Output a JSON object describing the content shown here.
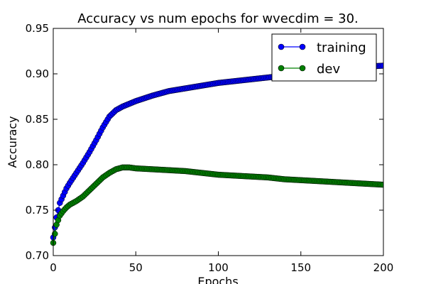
{
  "chart_data": {
    "type": "line",
    "title": "Accuracy vs num epochs for wvecdim = 30.",
    "xlabel": "Epochs",
    "ylabel": "Accuracy",
    "xlim": [
      0,
      200
    ],
    "ylim": [
      0.7,
      0.95
    ],
    "x_ticks": [
      0,
      50,
      100,
      150,
      200
    ],
    "y_ticks": [
      0.7,
      0.75,
      0.8,
      0.85,
      0.9,
      0.95
    ],
    "x_tick_labels": [
      "0",
      "50",
      "100",
      "150",
      "200"
    ],
    "y_tick_labels": [
      "0.70",
      "0.75",
      "0.80",
      "0.85",
      "0.90",
      "0.95"
    ],
    "grid": false,
    "legend_position": "top-right",
    "x": [
      0,
      2,
      4,
      6,
      8,
      10,
      14,
      18,
      22,
      26,
      30,
      34,
      38,
      42,
      46,
      50,
      60,
      70,
      80,
      90,
      100,
      110,
      120,
      130,
      140,
      150,
      160,
      170,
      180,
      190,
      200
    ],
    "series": [
      {
        "name": "training",
        "color": "#0000ff",
        "values": [
          0.72,
          0.742,
          0.758,
          0.766,
          0.774,
          0.78,
          0.791,
          0.802,
          0.814,
          0.827,
          0.841,
          0.853,
          0.86,
          0.864,
          0.867,
          0.87,
          0.876,
          0.881,
          0.884,
          0.887,
          0.89,
          0.892,
          0.894,
          0.896,
          0.898,
          0.9,
          0.902,
          0.904,
          0.906,
          0.908,
          0.909
        ]
      },
      {
        "name": "dev",
        "color": "#008000",
        "values": [
          0.714,
          0.734,
          0.744,
          0.749,
          0.753,
          0.756,
          0.76,
          0.765,
          0.772,
          0.779,
          0.786,
          0.791,
          0.795,
          0.797,
          0.797,
          0.796,
          0.795,
          0.794,
          0.793,
          0.791,
          0.789,
          0.788,
          0.787,
          0.786,
          0.784,
          0.783,
          0.782,
          0.781,
          0.78,
          0.779,
          0.778
        ]
      }
    ]
  }
}
